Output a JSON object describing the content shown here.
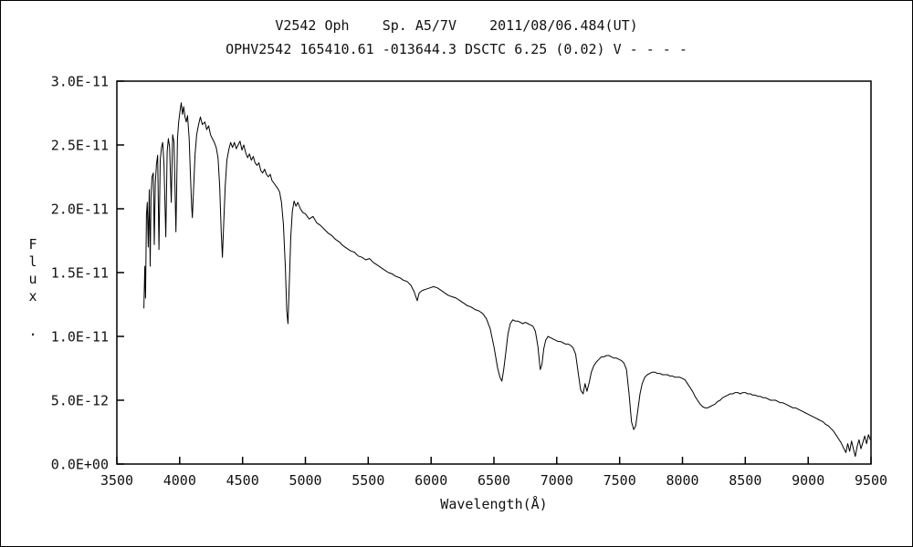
{
  "header": {
    "title_line1": "V2542 Oph    Sp. A5/7V    2011/08/06.484(UT)",
    "title_line2": "OPHV2542 165410.61 -013644.3 DSCTC 6.25 (0.02) V - - - -"
  },
  "chart_data": {
    "type": "line",
    "title": "V2542 Oph    Sp. A5/7V    2011/08/06.484(UT)",
    "subtitle": "OPHV2542 165410.61 -013644.3 DSCTC 6.25 (0.02) V - - - -",
    "line_color": "#000000",
    "grid": false,
    "legend": "none",
    "x_axis": {
      "label": "Wavelength(Å)",
      "min": 3500,
      "max": 9500,
      "tick_step": 500,
      "ticks": [
        3500,
        4000,
        4500,
        5000,
        5500,
        6000,
        6500,
        7000,
        7500,
        8000,
        8500,
        9000,
        9500
      ]
    },
    "y_axis": {
      "label": "Flux .",
      "min": 0,
      "max": 3.0,
      "flux_values_scale": 1e-11,
      "ticks": [
        {
          "value": 0.0,
          "label": "0.0E+00"
        },
        {
          "value": 0.5,
          "label": "5.0E-12"
        },
        {
          "value": 1.0,
          "label": "1.0E-11"
        },
        {
          "value": 1.5,
          "label": "1.5E-11"
        },
        {
          "value": 2.0,
          "label": "2.0E-11"
        },
        {
          "value": 2.5,
          "label": "2.5E-11"
        },
        {
          "value": 3.0,
          "label": "3.0E-11"
        }
      ]
    },
    "points": [
      [
        3715,
        1.22
      ],
      [
        3722,
        1.55
      ],
      [
        3728,
        1.3
      ],
      [
        3735,
        1.95
      ],
      [
        3742,
        2.05
      ],
      [
        3750,
        1.7
      ],
      [
        3758,
        2.15
      ],
      [
        3765,
        1.55
      ],
      [
        3772,
        2.1
      ],
      [
        3780,
        2.25
      ],
      [
        3790,
        2.28
      ],
      [
        3798,
        1.72
      ],
      [
        3806,
        2.2
      ],
      [
        3815,
        2.35
      ],
      [
        3825,
        2.42
      ],
      [
        3835,
        1.68
      ],
      [
        3845,
        2.38
      ],
      [
        3855,
        2.48
      ],
      [
        3865,
        2.52
      ],
      [
        3875,
        2.35
      ],
      [
        3889,
        1.78
      ],
      [
        3900,
        2.45
      ],
      [
        3910,
        2.55
      ],
      [
        3920,
        2.48
      ],
      [
        3933,
        2.05
      ],
      [
        3944,
        2.58
      ],
      [
        3955,
        2.52
      ],
      [
        3970,
        1.82
      ],
      [
        3982,
        2.55
      ],
      [
        3992,
        2.68
      ],
      [
        4002,
        2.76
      ],
      [
        4012,
        2.83
      ],
      [
        4022,
        2.74
      ],
      [
        4032,
        2.8
      ],
      [
        4042,
        2.72
      ],
      [
        4052,
        2.68
      ],
      [
        4062,
        2.73
      ],
      [
        4075,
        2.55
      ],
      [
        4085,
        2.28
      ],
      [
        4095,
        2.02
      ],
      [
        4101,
        1.93
      ],
      [
        4110,
        2.15
      ],
      [
        4122,
        2.42
      ],
      [
        4135,
        2.58
      ],
      [
        4150,
        2.66
      ],
      [
        4165,
        2.72
      ],
      [
        4180,
        2.66
      ],
      [
        4200,
        2.68
      ],
      [
        4215,
        2.62
      ],
      [
        4230,
        2.65
      ],
      [
        4245,
        2.58
      ],
      [
        4260,
        2.55
      ],
      [
        4275,
        2.52
      ],
      [
        4290,
        2.48
      ],
      [
        4305,
        2.4
      ],
      [
        4318,
        2.18
      ],
      [
        4330,
        1.82
      ],
      [
        4340,
        1.62
      ],
      [
        4350,
        1.88
      ],
      [
        4362,
        2.18
      ],
      [
        4375,
        2.38
      ],
      [
        4390,
        2.46
      ],
      [
        4405,
        2.52
      ],
      [
        4420,
        2.48
      ],
      [
        4435,
        2.52
      ],
      [
        4450,
        2.47
      ],
      [
        4465,
        2.5
      ],
      [
        4480,
        2.53
      ],
      [
        4495,
        2.46
      ],
      [
        4510,
        2.5
      ],
      [
        4525,
        2.44
      ],
      [
        4540,
        2.4
      ],
      [
        4555,
        2.43
      ],
      [
        4570,
        2.38
      ],
      [
        4585,
        2.41
      ],
      [
        4600,
        2.36
      ],
      [
        4615,
        2.34
      ],
      [
        4630,
        2.36
      ],
      [
        4645,
        2.3
      ],
      [
        4660,
        2.28
      ],
      [
        4675,
        2.31
      ],
      [
        4690,
        2.27
      ],
      [
        4705,
        2.25
      ],
      [
        4720,
        2.27
      ],
      [
        4735,
        2.22
      ],
      [
        4750,
        2.2
      ],
      [
        4765,
        2.18
      ],
      [
        4780,
        2.16
      ],
      [
        4795,
        2.13
      ],
      [
        4810,
        2.05
      ],
      [
        4825,
        1.88
      ],
      [
        4840,
        1.55
      ],
      [
        4852,
        1.2
      ],
      [
        4861,
        1.1
      ],
      [
        4872,
        1.42
      ],
      [
        4884,
        1.78
      ],
      [
        4896,
        1.98
      ],
      [
        4910,
        2.06
      ],
      [
        4925,
        2.02
      ],
      [
        4940,
        2.05
      ],
      [
        4960,
        2.0
      ],
      [
        4980,
        1.97
      ],
      [
        5000,
        1.96
      ],
      [
        5030,
        1.92
      ],
      [
        5060,
        1.94
      ],
      [
        5090,
        1.89
      ],
      [
        5120,
        1.87
      ],
      [
        5150,
        1.84
      ],
      [
        5180,
        1.81
      ],
      [
        5210,
        1.79
      ],
      [
        5240,
        1.76
      ],
      [
        5270,
        1.74
      ],
      [
        5300,
        1.71
      ],
      [
        5330,
        1.69
      ],
      [
        5360,
        1.67
      ],
      [
        5390,
        1.66
      ],
      [
        5420,
        1.63
      ],
      [
        5450,
        1.62
      ],
      [
        5480,
        1.6
      ],
      [
        5510,
        1.61
      ],
      [
        5540,
        1.58
      ],
      [
        5570,
        1.56
      ],
      [
        5600,
        1.54
      ],
      [
        5630,
        1.52
      ],
      [
        5660,
        1.5
      ],
      [
        5690,
        1.49
      ],
      [
        5720,
        1.47
      ],
      [
        5750,
        1.46
      ],
      [
        5780,
        1.44
      ],
      [
        5810,
        1.43
      ],
      [
        5840,
        1.4
      ],
      [
        5865,
        1.35
      ],
      [
        5890,
        1.28
      ],
      [
        5905,
        1.34
      ],
      [
        5930,
        1.36
      ],
      [
        5960,
        1.37
      ],
      [
        5990,
        1.38
      ],
      [
        6020,
        1.39
      ],
      [
        6050,
        1.38
      ],
      [
        6080,
        1.36
      ],
      [
        6110,
        1.34
      ],
      [
        6140,
        1.32
      ],
      [
        6170,
        1.31
      ],
      [
        6200,
        1.3
      ],
      [
        6230,
        1.28
      ],
      [
        6260,
        1.26
      ],
      [
        6290,
        1.24
      ],
      [
        6320,
        1.23
      ],
      [
        6350,
        1.21
      ],
      [
        6380,
        1.2
      ],
      [
        6410,
        1.18
      ],
      [
        6440,
        1.14
      ],
      [
        6470,
        1.06
      ],
      [
        6500,
        0.92
      ],
      [
        6530,
        0.75
      ],
      [
        6548,
        0.68
      ],
      [
        6563,
        0.65
      ],
      [
        6578,
        0.74
      ],
      [
        6595,
        0.88
      ],
      [
        6612,
        1.02
      ],
      [
        6630,
        1.1
      ],
      [
        6650,
        1.13
      ],
      [
        6670,
        1.12
      ],
      [
        6690,
        1.12
      ],
      [
        6710,
        1.11
      ],
      [
        6730,
        1.1
      ],
      [
        6750,
        1.11
      ],
      [
        6770,
        1.1
      ],
      [
        6790,
        1.09
      ],
      [
        6810,
        1.08
      ],
      [
        6830,
        1.04
      ],
      [
        6850,
        0.92
      ],
      [
        6868,
        0.74
      ],
      [
        6882,
        0.78
      ],
      [
        6896,
        0.9
      ],
      [
        6912,
        0.97
      ],
      [
        6930,
        1.0
      ],
      [
        6950,
        0.99
      ],
      [
        6970,
        0.98
      ],
      [
        6990,
        0.97
      ],
      [
        7010,
        0.96
      ],
      [
        7030,
        0.96
      ],
      [
        7050,
        0.95
      ],
      [
        7070,
        0.94
      ],
      [
        7090,
        0.94
      ],
      [
        7110,
        0.93
      ],
      [
        7130,
        0.91
      ],
      [
        7150,
        0.86
      ],
      [
        7170,
        0.72
      ],
      [
        7190,
        0.58
      ],
      [
        7210,
        0.55
      ],
      [
        7225,
        0.63
      ],
      [
        7240,
        0.57
      ],
      [
        7258,
        0.64
      ],
      [
        7275,
        0.72
      ],
      [
        7295,
        0.77
      ],
      [
        7315,
        0.8
      ],
      [
        7335,
        0.82
      ],
      [
        7355,
        0.84
      ],
      [
        7375,
        0.84
      ],
      [
        7395,
        0.85
      ],
      [
        7415,
        0.85
      ],
      [
        7435,
        0.84
      ],
      [
        7455,
        0.83
      ],
      [
        7475,
        0.83
      ],
      [
        7495,
        0.82
      ],
      [
        7515,
        0.81
      ],
      [
        7535,
        0.79
      ],
      [
        7555,
        0.74
      ],
      [
        7575,
        0.55
      ],
      [
        7595,
        0.33
      ],
      [
        7612,
        0.27
      ],
      [
        7628,
        0.3
      ],
      [
        7645,
        0.42
      ],
      [
        7662,
        0.55
      ],
      [
        7680,
        0.63
      ],
      [
        7700,
        0.68
      ],
      [
        7720,
        0.7
      ],
      [
        7740,
        0.71
      ],
      [
        7760,
        0.72
      ],
      [
        7780,
        0.72
      ],
      [
        7800,
        0.71
      ],
      [
        7820,
        0.71
      ],
      [
        7840,
        0.7
      ],
      [
        7860,
        0.7
      ],
      [
        7880,
        0.7
      ],
      [
        7900,
        0.69
      ],
      [
        7920,
        0.69
      ],
      [
        7940,
        0.68
      ],
      [
        7960,
        0.68
      ],
      [
        7980,
        0.68
      ],
      [
        8000,
        0.67
      ],
      [
        8020,
        0.66
      ],
      [
        8040,
        0.63
      ],
      [
        8060,
        0.6
      ],
      [
        8080,
        0.57
      ],
      [
        8100,
        0.53
      ],
      [
        8120,
        0.5
      ],
      [
        8140,
        0.47
      ],
      [
        8160,
        0.45
      ],
      [
        8180,
        0.44
      ],
      [
        8200,
        0.44
      ],
      [
        8220,
        0.45
      ],
      [
        8240,
        0.46
      ],
      [
        8260,
        0.47
      ],
      [
        8280,
        0.49
      ],
      [
        8300,
        0.5
      ],
      [
        8320,
        0.52
      ],
      [
        8340,
        0.53
      ],
      [
        8360,
        0.54
      ],
      [
        8380,
        0.55
      ],
      [
        8400,
        0.55
      ],
      [
        8420,
        0.56
      ],
      [
        8440,
        0.56
      ],
      [
        8460,
        0.55
      ],
      [
        8480,
        0.56
      ],
      [
        8500,
        0.56
      ],
      [
        8520,
        0.55
      ],
      [
        8540,
        0.55
      ],
      [
        8560,
        0.54
      ],
      [
        8580,
        0.54
      ],
      [
        8600,
        0.53
      ],
      [
        8620,
        0.53
      ],
      [
        8640,
        0.52
      ],
      [
        8660,
        0.52
      ],
      [
        8680,
        0.51
      ],
      [
        8700,
        0.5
      ],
      [
        8720,
        0.5
      ],
      [
        8740,
        0.5
      ],
      [
        8760,
        0.49
      ],
      [
        8780,
        0.48
      ],
      [
        8800,
        0.48
      ],
      [
        8820,
        0.47
      ],
      [
        8840,
        0.46
      ],
      [
        8860,
        0.45
      ],
      [
        8880,
        0.44
      ],
      [
        8900,
        0.44
      ],
      [
        8920,
        0.43
      ],
      [
        8940,
        0.42
      ],
      [
        8960,
        0.41
      ],
      [
        8980,
        0.4
      ],
      [
        9000,
        0.39
      ],
      [
        9020,
        0.38
      ],
      [
        9040,
        0.37
      ],
      [
        9060,
        0.36
      ],
      [
        9080,
        0.35
      ],
      [
        9100,
        0.34
      ],
      [
        9120,
        0.33
      ],
      [
        9140,
        0.31
      ],
      [
        9160,
        0.3
      ],
      [
        9180,
        0.28
      ],
      [
        9200,
        0.26
      ],
      [
        9220,
        0.23
      ],
      [
        9240,
        0.2
      ],
      [
        9260,
        0.17
      ],
      [
        9280,
        0.13
      ],
      [
        9300,
        0.09
      ],
      [
        9315,
        0.16
      ],
      [
        9330,
        0.1
      ],
      [
        9345,
        0.18
      ],
      [
        9360,
        0.12
      ],
      [
        9375,
        0.06
      ],
      [
        9390,
        0.14
      ],
      [
        9405,
        0.19
      ],
      [
        9420,
        0.12
      ],
      [
        9435,
        0.17
      ],
      [
        9450,
        0.22
      ],
      [
        9465,
        0.16
      ],
      [
        9480,
        0.23
      ],
      [
        9495,
        0.19
      ]
    ]
  }
}
